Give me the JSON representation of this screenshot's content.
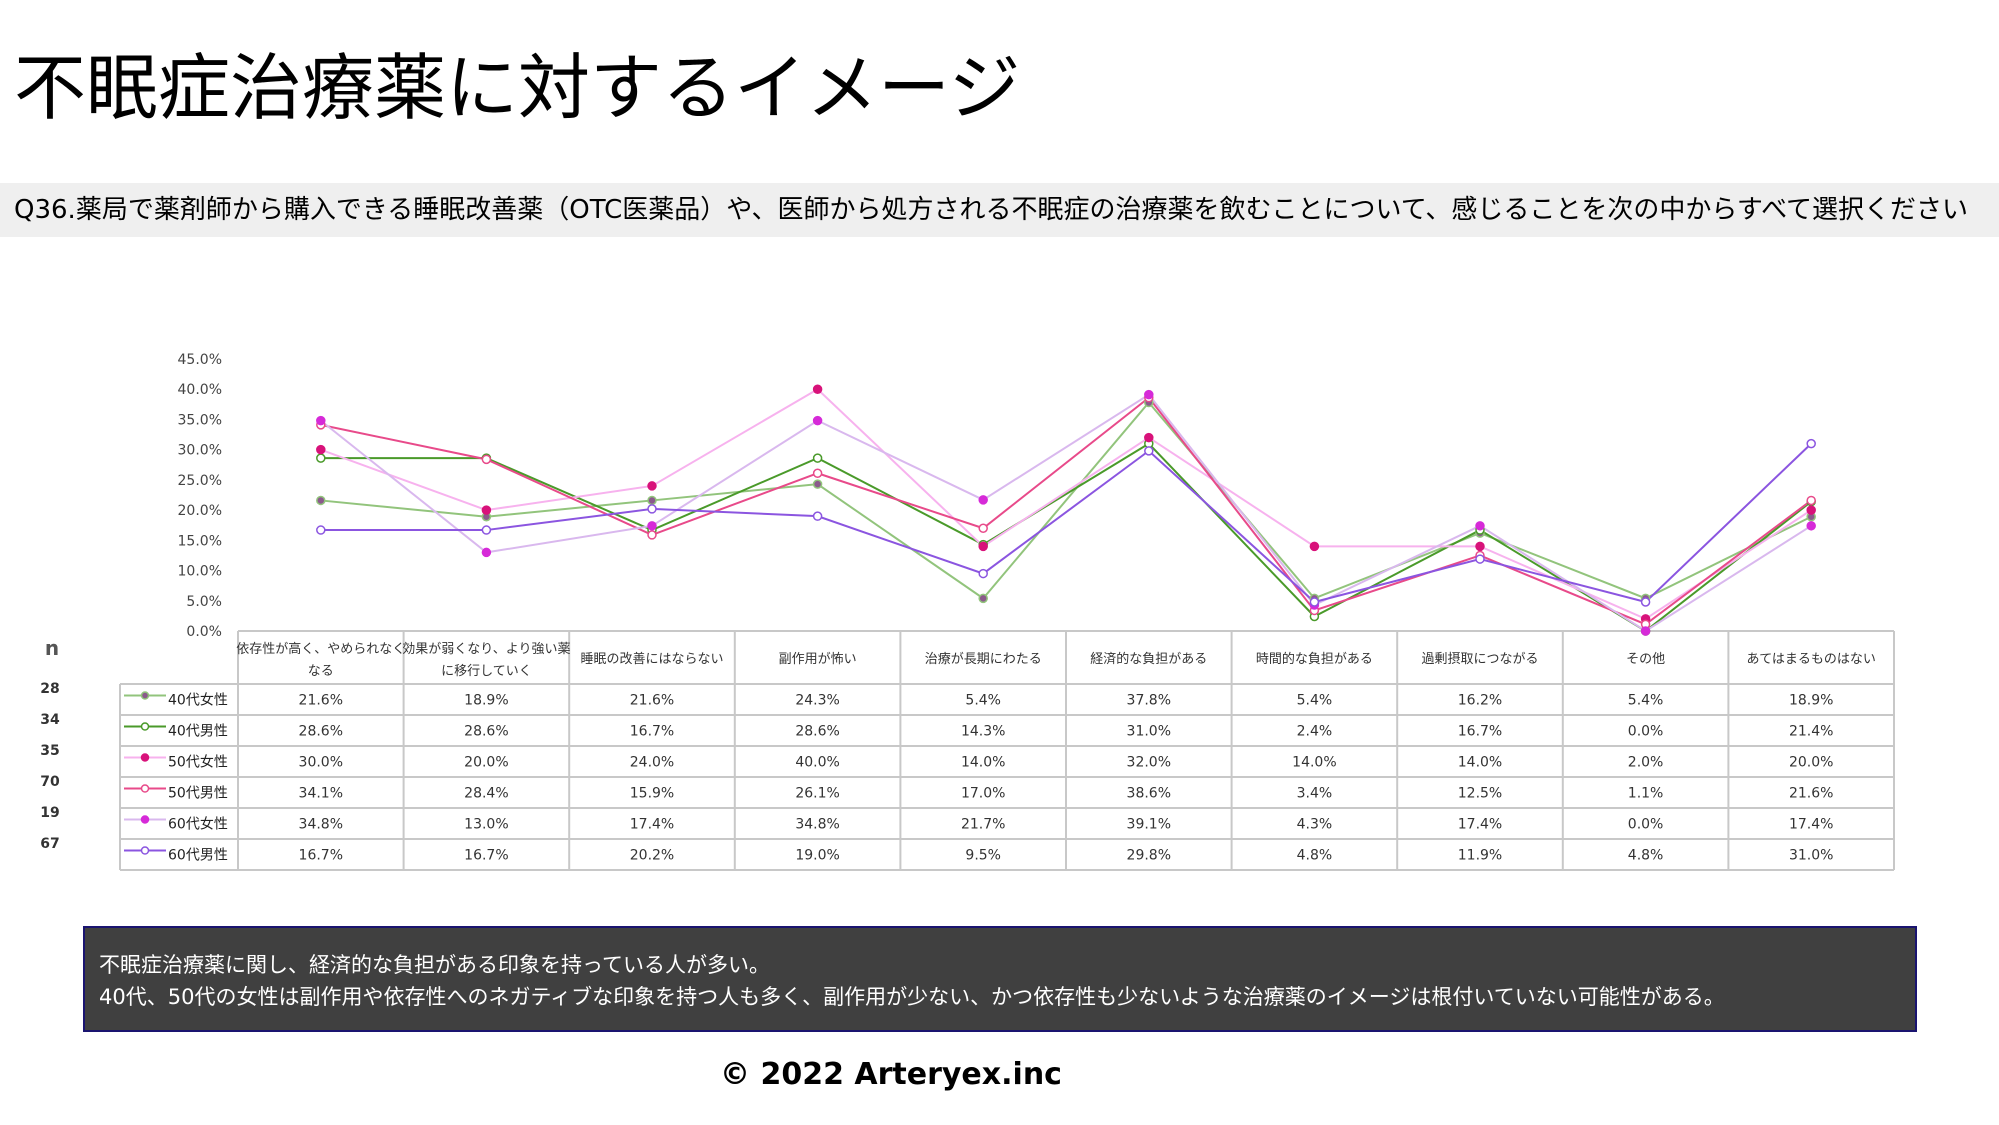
{
  "page": {
    "title": "不眠症治療薬に対するイメージ",
    "question": "Q36.薬局で薬剤師から購入できる睡眠改善薬（OTC医薬品）や、医師から処方される不眠症の治療薬を飲むことについて、感じることを次の中からすべて選択ください",
    "summary_line1": "不眠症治療薬に関し、経済的な負担がある印象を持っている人が多い。",
    "summary_line2": "40代、50代の女性は副作用や依存性へのネガティブな印象を持つ人も多く、副作用が少ない、かつ依存性も少ないような治療薬のイメージは根付いていない可能性がある。",
    "copyright": "©  2022 Arteryex.inc"
  },
  "chart_data": {
    "type": "line",
    "title": "",
    "ylim": [
      0,
      45
    ],
    "y_ticks": [
      "0.0%",
      "5.0%",
      "10.0%",
      "15.0%",
      "20.0%",
      "25.0%",
      "30.0%",
      "35.0%",
      "40.0%",
      "45.0%"
    ],
    "n_header": "n",
    "categories": [
      [
        "依存性が高く、やめられなく",
        "なる"
      ],
      [
        "効果が弱くなり、より強い薬",
        "に移行していく"
      ],
      [
        "睡眠の改善にはならない"
      ],
      [
        "副作用が怖い"
      ],
      [
        "治療が長期にわたる"
      ],
      [
        "経済的な負担がある"
      ],
      [
        "時間的な負担がある"
      ],
      [
        "過剰摂取につながる"
      ],
      [
        "その他"
      ],
      [
        "あてはまるものはない"
      ]
    ],
    "series": [
      {
        "name": "40代女性",
        "n": "28",
        "color": "#92c47c",
        "marker_fill": "#8b5a8c",
        "marker_stroke": "#92c47c",
        "values": [
          21.6,
          18.9,
          21.6,
          24.3,
          5.4,
          37.8,
          5.4,
          16.2,
          5.4,
          18.9
        ],
        "labels": [
          "21.6%",
          "18.9%",
          "21.6%",
          "24.3%",
          "5.4%",
          "37.8%",
          "5.4%",
          "16.2%",
          "5.4%",
          "18.9%"
        ]
      },
      {
        "name": "40代男性",
        "n": "34",
        "color": "#4a9a2a",
        "marker_fill": "#ffffff",
        "marker_stroke": "#4a9a2a",
        "values": [
          28.6,
          28.6,
          16.7,
          28.6,
          14.3,
          31.0,
          2.4,
          16.7,
          0.0,
          21.4
        ],
        "labels": [
          "28.6%",
          "28.6%",
          "16.7%",
          "28.6%",
          "14.3%",
          "31.0%",
          "2.4%",
          "16.7%",
          "0.0%",
          "21.4%"
        ]
      },
      {
        "name": "50代女性",
        "n": "35",
        "color": "#f7b2ee",
        "marker_fill": "#d8127a",
        "marker_stroke": "#d8127a",
        "values": [
          30.0,
          20.0,
          24.0,
          40.0,
          14.0,
          32.0,
          14.0,
          14.0,
          2.0,
          20.0
        ],
        "labels": [
          "30.0%",
          "20.0%",
          "24.0%",
          "40.0%",
          "14.0%",
          "32.0%",
          "14.0%",
          "14.0%",
          "2.0%",
          "20.0%"
        ]
      },
      {
        "name": "50代男性",
        "n": "70",
        "color": "#e84a8a",
        "marker_fill": "#ffffff",
        "marker_stroke": "#e84a8a",
        "values": [
          34.1,
          28.4,
          15.9,
          26.1,
          17.0,
          38.6,
          3.4,
          12.5,
          1.1,
          21.6
        ],
        "labels": [
          "34.1%",
          "28.4%",
          "15.9%",
          "26.1%",
          "17.0%",
          "38.6%",
          "3.4%",
          "12.5%",
          "1.1%",
          "21.6%"
        ]
      },
      {
        "name": "60代女性",
        "n": "19",
        "color": "#d9b8ee",
        "marker_fill": "#d62ad8",
        "marker_stroke": "#d62ad8",
        "values": [
          34.8,
          13.0,
          17.4,
          34.8,
          21.7,
          39.1,
          4.3,
          17.4,
          0.0,
          17.4
        ],
        "labels": [
          "34.8%",
          "13.0%",
          "17.4%",
          "34.8%",
          "21.7%",
          "39.1%",
          "4.3%",
          "17.4%",
          "0.0%",
          "17.4%"
        ]
      },
      {
        "name": "60代男性",
        "n": "67",
        "color": "#8b55e0",
        "marker_fill": "#ffffff",
        "marker_stroke": "#8b55e0",
        "values": [
          16.7,
          16.7,
          20.2,
          19.0,
          9.5,
          29.8,
          4.8,
          11.9,
          4.8,
          31.0
        ],
        "labels": [
          "16.7%",
          "16.7%",
          "20.2%",
          "19.0%",
          "9.5%",
          "29.8%",
          "4.8%",
          "11.9%",
          "4.8%",
          "31.0%"
        ]
      }
    ]
  }
}
